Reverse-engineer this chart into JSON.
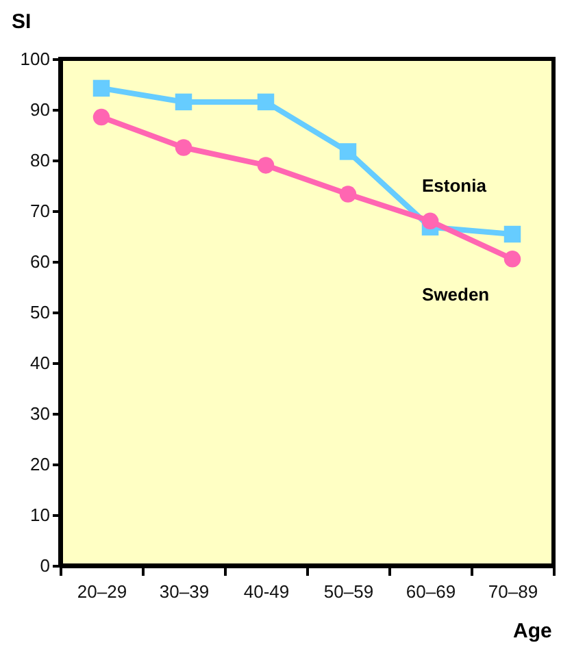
{
  "chart_data": {
    "type": "line",
    "xlabel": "Age",
    "ylabel": "SI",
    "categories": [
      "20–29",
      "30–39",
      "40-49",
      "50–59",
      "60–69",
      "70–89"
    ],
    "series": [
      {
        "name": "Estonia",
        "color": "#66ccff",
        "marker": "square",
        "values": [
          94.2,
          91.5,
          91.5,
          81.7,
          66.8,
          65.4
        ]
      },
      {
        "name": "Sweden",
        "color": "#ff66b2",
        "marker": "circle",
        "values": [
          88.5,
          82.5,
          79,
          73.3,
          68,
          60.5
        ]
      }
    ],
    "ylim": [
      0,
      100
    ],
    "yticks": [
      0,
      10,
      20,
      30,
      40,
      50,
      60,
      70,
      80,
      90,
      100
    ],
    "grid": false
  }
}
